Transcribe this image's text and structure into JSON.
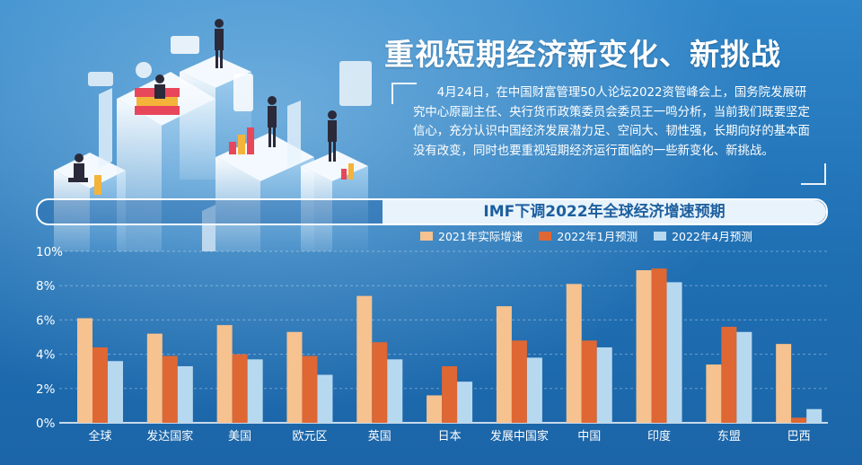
{
  "title": "重视短期经济新变化、新挑战",
  "summary": "4月24日，在中国财富管理50人论坛2022资管峰会上，国务院发展研究中心原副主任、央行货币政策委员会委员王一鸣分析，当前我们既要坚定信心，充分认识中国经济发展潜力足、空间大、韧性强，长期向好的基本面没有改变，同时也要重视短期经济运行面临的一些新变化、新挑战。",
  "chart_data": {
    "type": "bar",
    "title": "IMF下调2022年全球经济增速预期",
    "categories": [
      "全球",
      "发达国家",
      "美国",
      "欧元区",
      "英国",
      "日本",
      "发展中国家",
      "中国",
      "印度",
      "东盟",
      "巴西"
    ],
    "series": [
      {
        "name": "2021年实际增速",
        "color": "#f6c28f",
        "values": [
          6.1,
          5.2,
          5.7,
          5.3,
          7.4,
          1.6,
          6.8,
          8.1,
          8.9,
          3.4,
          4.6
        ]
      },
      {
        "name": "2022年1月预测",
        "color": "#de6734",
        "values": [
          4.4,
          3.9,
          4.0,
          3.9,
          4.7,
          3.3,
          4.8,
          4.8,
          9.0,
          5.6,
          0.3
        ]
      },
      {
        "name": "2022年4月预测",
        "color": "#b7d9f0",
        "values": [
          3.6,
          3.3,
          3.7,
          2.8,
          3.7,
          2.4,
          3.8,
          4.4,
          8.2,
          5.3,
          0.8
        ]
      }
    ],
    "ylim": [
      0,
      10
    ],
    "yticks": [
      "0%",
      "2%",
      "4%",
      "6%",
      "8%",
      "10%"
    ],
    "grid": true,
    "legend_position": "top-right"
  }
}
